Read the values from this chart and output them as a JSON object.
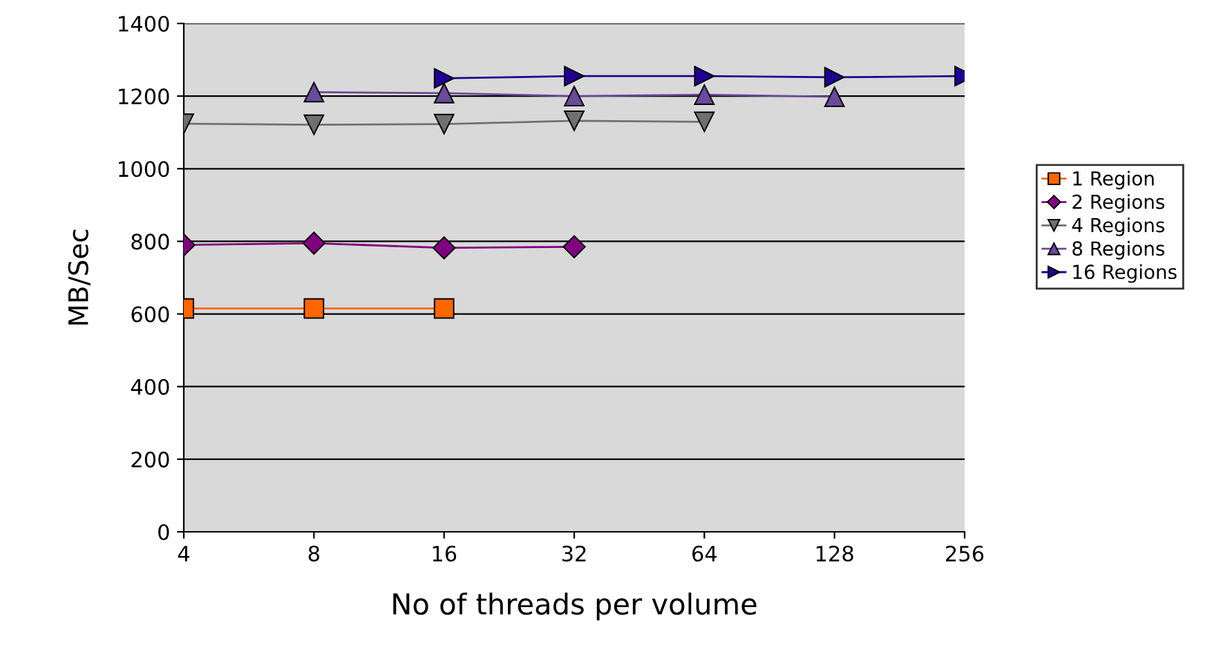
{
  "chart_data": {
    "type": "line",
    "xlabel": "No of threads per volume",
    "ylabel": "MB/Sec",
    "categories": [
      "4",
      "8",
      "16",
      "32",
      "64",
      "128",
      "256"
    ],
    "ylim": [
      0,
      1400
    ],
    "yticks": [
      0,
      200,
      400,
      600,
      800,
      1000,
      1200,
      1400
    ],
    "grid": "y",
    "legend": "right",
    "series": [
      {
        "name": "1 Region",
        "color": "#ff6600",
        "marker": "square",
        "values": [
          615,
          615,
          615,
          null,
          null,
          null,
          null
        ]
      },
      {
        "name": "2 Regions",
        "color": "#800080",
        "marker": "diamond",
        "values": [
          790,
          795,
          782,
          785,
          null,
          null,
          null
        ]
      },
      {
        "name": "4 Regions",
        "color": "#707070",
        "marker": "triangle_down",
        "values": [
          1124,
          1121,
          1123,
          1132,
          1129,
          null,
          null
        ]
      },
      {
        "name": "8 Regions",
        "color": "#6a4a9a",
        "marker": "triangle",
        "values": [
          null,
          1211,
          1208,
          1200,
          1204,
          1198,
          null
        ]
      },
      {
        "name": "16 Regions",
        "color": "#1f0090",
        "marker": "triangle_right",
        "values": [
          null,
          null,
          1249,
          1255,
          1255,
          1252,
          1255
        ]
      }
    ]
  }
}
